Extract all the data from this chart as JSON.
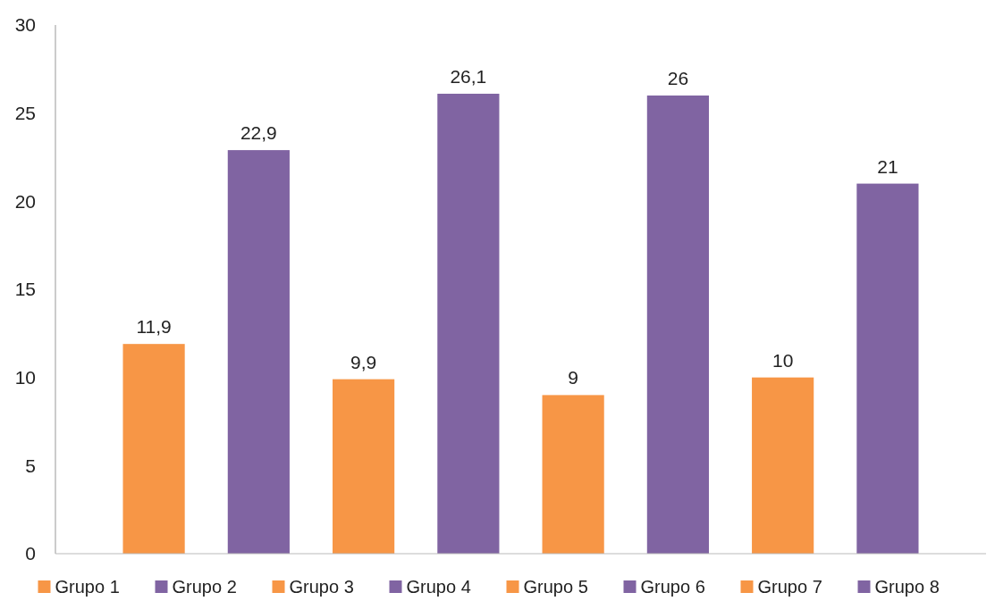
{
  "chart_data": {
    "type": "bar",
    "categories": [
      null
    ],
    "series": [
      {
        "name": "Grupo 1",
        "color": "#f79646",
        "values": [
          11.9
        ],
        "value_labels": [
          "11,9"
        ]
      },
      {
        "name": "Grupo 2",
        "color": "#8064a2",
        "values": [
          22.9
        ],
        "value_labels": [
          "22,9"
        ]
      },
      {
        "name": "Grupo 3",
        "color": "#f79646",
        "values": [
          9.9
        ],
        "value_labels": [
          "9,9"
        ]
      },
      {
        "name": "Grupo 4",
        "color": "#8064a2",
        "values": [
          26.1
        ],
        "value_labels": [
          "26,1"
        ]
      },
      {
        "name": "Grupo 5",
        "color": "#f79646",
        "values": [
          9
        ],
        "value_labels": [
          "9"
        ]
      },
      {
        "name": "Grupo 6",
        "color": "#8064a2",
        "values": [
          26
        ],
        "value_labels": [
          "26"
        ]
      },
      {
        "name": "Grupo 7",
        "color": "#f79646",
        "values": [
          10
        ],
        "value_labels": [
          "10"
        ]
      },
      {
        "name": "Grupo 8",
        "color": "#8064a2",
        "values": [
          21
        ],
        "value_labels": [
          "21"
        ]
      }
    ],
    "ylim": [
      0,
      30
    ],
    "yticks": [
      0,
      5,
      10,
      15,
      20,
      25,
      30
    ],
    "legend": "bottom"
  }
}
